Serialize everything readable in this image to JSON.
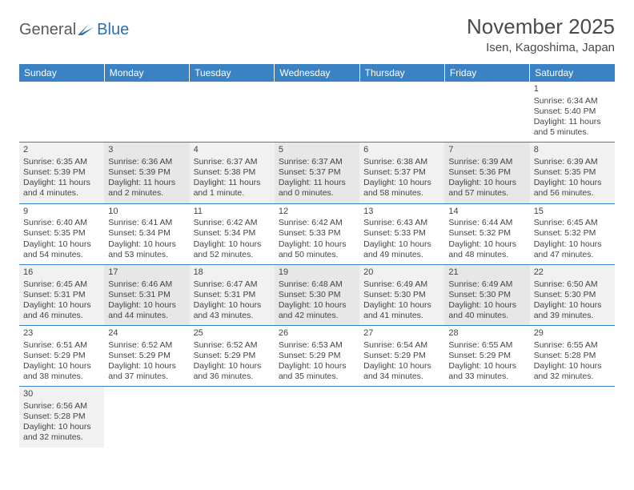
{
  "logo": {
    "text1": "General",
    "text2": "Blue"
  },
  "title": "November 2025",
  "location": "Isen, Kagoshima, Japan",
  "colors": {
    "header_bg": "#3b82c4",
    "header_fg": "#ffffff",
    "row_border": "#3b82c4",
    "shade_a": "#f1f1f1",
    "shade_b": "#e7e7e7",
    "text": "#444444"
  },
  "weekdays": [
    "Sunday",
    "Monday",
    "Tuesday",
    "Wednesday",
    "Thursday",
    "Friday",
    "Saturday"
  ],
  "weeks": [
    [
      null,
      null,
      null,
      null,
      null,
      null,
      {
        "n": "1",
        "sr": "Sunrise: 6:34 AM",
        "ss": "Sunset: 5:40 PM",
        "dl": "Daylight: 11 hours and 5 minutes."
      }
    ],
    [
      {
        "n": "2",
        "sr": "Sunrise: 6:35 AM",
        "ss": "Sunset: 5:39 PM",
        "dl": "Daylight: 11 hours and 4 minutes."
      },
      {
        "n": "3",
        "sr": "Sunrise: 6:36 AM",
        "ss": "Sunset: 5:39 PM",
        "dl": "Daylight: 11 hours and 2 minutes."
      },
      {
        "n": "4",
        "sr": "Sunrise: 6:37 AM",
        "ss": "Sunset: 5:38 PM",
        "dl": "Daylight: 11 hours and 1 minute."
      },
      {
        "n": "5",
        "sr": "Sunrise: 6:37 AM",
        "ss": "Sunset: 5:37 PM",
        "dl": "Daylight: 11 hours and 0 minutes."
      },
      {
        "n": "6",
        "sr": "Sunrise: 6:38 AM",
        "ss": "Sunset: 5:37 PM",
        "dl": "Daylight: 10 hours and 58 minutes."
      },
      {
        "n": "7",
        "sr": "Sunrise: 6:39 AM",
        "ss": "Sunset: 5:36 PM",
        "dl": "Daylight: 10 hours and 57 minutes."
      },
      {
        "n": "8",
        "sr": "Sunrise: 6:39 AM",
        "ss": "Sunset: 5:35 PM",
        "dl": "Daylight: 10 hours and 56 minutes."
      }
    ],
    [
      {
        "n": "9",
        "sr": "Sunrise: 6:40 AM",
        "ss": "Sunset: 5:35 PM",
        "dl": "Daylight: 10 hours and 54 minutes."
      },
      {
        "n": "10",
        "sr": "Sunrise: 6:41 AM",
        "ss": "Sunset: 5:34 PM",
        "dl": "Daylight: 10 hours and 53 minutes."
      },
      {
        "n": "11",
        "sr": "Sunrise: 6:42 AM",
        "ss": "Sunset: 5:34 PM",
        "dl": "Daylight: 10 hours and 52 minutes."
      },
      {
        "n": "12",
        "sr": "Sunrise: 6:42 AM",
        "ss": "Sunset: 5:33 PM",
        "dl": "Daylight: 10 hours and 50 minutes."
      },
      {
        "n": "13",
        "sr": "Sunrise: 6:43 AM",
        "ss": "Sunset: 5:33 PM",
        "dl": "Daylight: 10 hours and 49 minutes."
      },
      {
        "n": "14",
        "sr": "Sunrise: 6:44 AM",
        "ss": "Sunset: 5:32 PM",
        "dl": "Daylight: 10 hours and 48 minutes."
      },
      {
        "n": "15",
        "sr": "Sunrise: 6:45 AM",
        "ss": "Sunset: 5:32 PM",
        "dl": "Daylight: 10 hours and 47 minutes."
      }
    ],
    [
      {
        "n": "16",
        "sr": "Sunrise: 6:45 AM",
        "ss": "Sunset: 5:31 PM",
        "dl": "Daylight: 10 hours and 46 minutes."
      },
      {
        "n": "17",
        "sr": "Sunrise: 6:46 AM",
        "ss": "Sunset: 5:31 PM",
        "dl": "Daylight: 10 hours and 44 minutes."
      },
      {
        "n": "18",
        "sr": "Sunrise: 6:47 AM",
        "ss": "Sunset: 5:31 PM",
        "dl": "Daylight: 10 hours and 43 minutes."
      },
      {
        "n": "19",
        "sr": "Sunrise: 6:48 AM",
        "ss": "Sunset: 5:30 PM",
        "dl": "Daylight: 10 hours and 42 minutes."
      },
      {
        "n": "20",
        "sr": "Sunrise: 6:49 AM",
        "ss": "Sunset: 5:30 PM",
        "dl": "Daylight: 10 hours and 41 minutes."
      },
      {
        "n": "21",
        "sr": "Sunrise: 6:49 AM",
        "ss": "Sunset: 5:30 PM",
        "dl": "Daylight: 10 hours and 40 minutes."
      },
      {
        "n": "22",
        "sr": "Sunrise: 6:50 AM",
        "ss": "Sunset: 5:30 PM",
        "dl": "Daylight: 10 hours and 39 minutes."
      }
    ],
    [
      {
        "n": "23",
        "sr": "Sunrise: 6:51 AM",
        "ss": "Sunset: 5:29 PM",
        "dl": "Daylight: 10 hours and 38 minutes."
      },
      {
        "n": "24",
        "sr": "Sunrise: 6:52 AM",
        "ss": "Sunset: 5:29 PM",
        "dl": "Daylight: 10 hours and 37 minutes."
      },
      {
        "n": "25",
        "sr": "Sunrise: 6:52 AM",
        "ss": "Sunset: 5:29 PM",
        "dl": "Daylight: 10 hours and 36 minutes."
      },
      {
        "n": "26",
        "sr": "Sunrise: 6:53 AM",
        "ss": "Sunset: 5:29 PM",
        "dl": "Daylight: 10 hours and 35 minutes."
      },
      {
        "n": "27",
        "sr": "Sunrise: 6:54 AM",
        "ss": "Sunset: 5:29 PM",
        "dl": "Daylight: 10 hours and 34 minutes."
      },
      {
        "n": "28",
        "sr": "Sunrise: 6:55 AM",
        "ss": "Sunset: 5:29 PM",
        "dl": "Daylight: 10 hours and 33 minutes."
      },
      {
        "n": "29",
        "sr": "Sunrise: 6:55 AM",
        "ss": "Sunset: 5:28 PM",
        "dl": "Daylight: 10 hours and 32 minutes."
      }
    ],
    [
      {
        "n": "30",
        "sr": "Sunrise: 6:56 AM",
        "ss": "Sunset: 5:28 PM",
        "dl": "Daylight: 10 hours and 32 minutes."
      },
      null,
      null,
      null,
      null,
      null,
      null
    ]
  ]
}
